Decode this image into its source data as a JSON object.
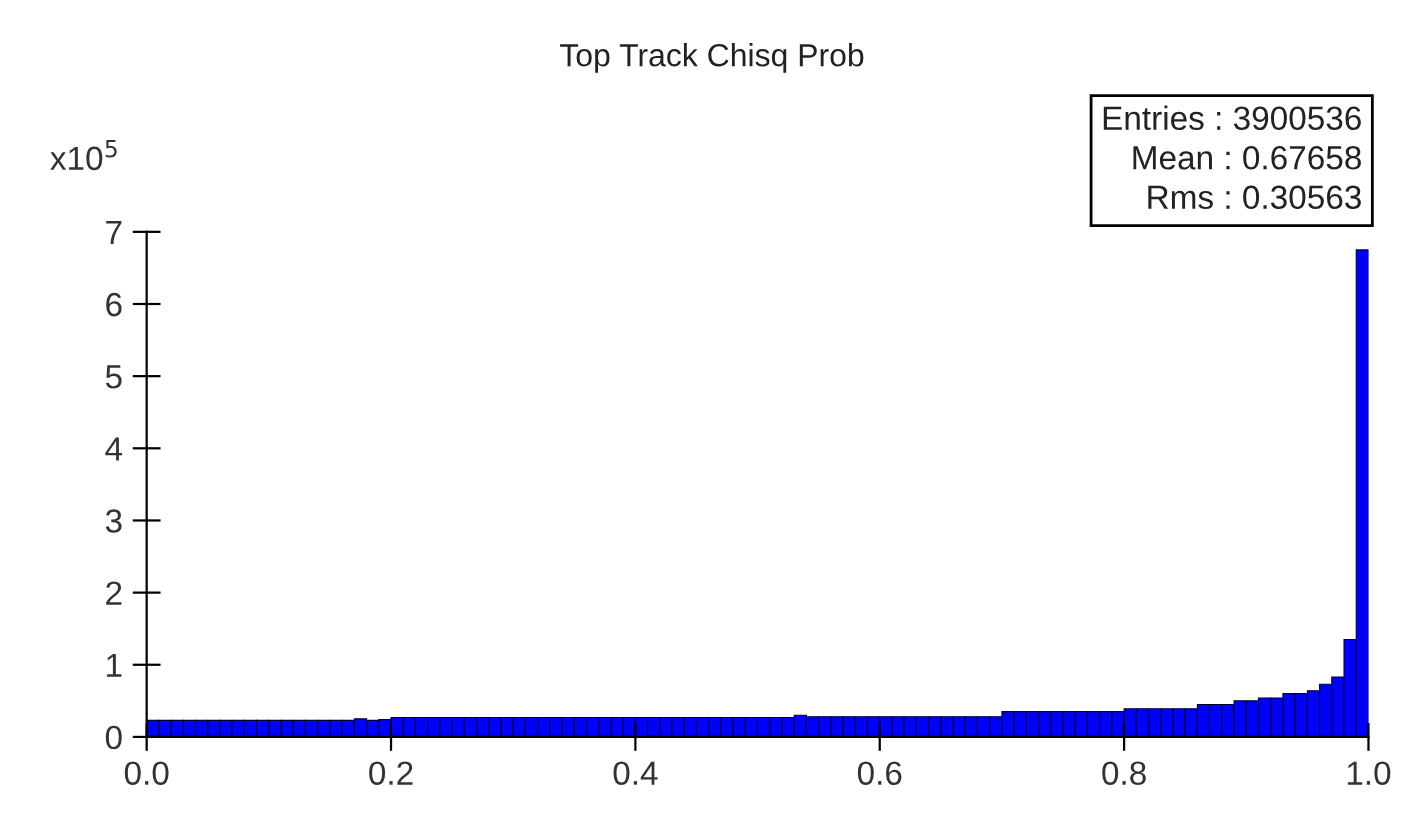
{
  "chart_data": {
    "type": "histogram",
    "title": "Top Track Chisq Prob",
    "ylabel": "x10$^{5}$",
    "bins": [
      0,
      0.01,
      0.02,
      0.03,
      0.04,
      0.05,
      0.06,
      0.07,
      0.08,
      0.09,
      0.1,
      0.11,
      0.12,
      0.13,
      0.14,
      0.15,
      0.16,
      0.17,
      0.18,
      0.19,
      0.2,
      0.21,
      0.22,
      0.23,
      0.24,
      0.25,
      0.26,
      0.27,
      0.28,
      0.29,
      0.3,
      0.31,
      0.32,
      0.33,
      0.34,
      0.35,
      0.36,
      0.37,
      0.38,
      0.39,
      0.4,
      0.41,
      0.42,
      0.43,
      0.44,
      0.45,
      0.46,
      0.47,
      0.48,
      0.49,
      0.5,
      0.51,
      0.52,
      0.53,
      0.54,
      0.55,
      0.56,
      0.57,
      0.58,
      0.59,
      0.6,
      0.61,
      0.62,
      0.63,
      0.64,
      0.65,
      0.66,
      0.67,
      0.68,
      0.69,
      0.7,
      0.71,
      0.72,
      0.73,
      0.74,
      0.75,
      0.76,
      0.77,
      0.78,
      0.79,
      0.8,
      0.81,
      0.82,
      0.83,
      0.84,
      0.85,
      0.86,
      0.87,
      0.88,
      0.89,
      0.9,
      0.91,
      0.92,
      0.93,
      0.94,
      0.95,
      0.96,
      0.97,
      0.98,
      0.99,
      1.0
    ],
    "values": [
      0.23,
      0.23,
      0.23,
      0.23,
      0.23,
      0.23,
      0.23,
      0.23,
      0.23,
      0.23,
      0.23,
      0.23,
      0.23,
      0.23,
      0.23,
      0.23,
      0.23,
      0.25,
      0.23,
      0.24,
      0.27,
      0.27,
      0.27,
      0.27,
      0.27,
      0.27,
      0.27,
      0.27,
      0.27,
      0.27,
      0.27,
      0.27,
      0.27,
      0.27,
      0.27,
      0.27,
      0.27,
      0.27,
      0.27,
      0.27,
      0.27,
      0.27,
      0.27,
      0.27,
      0.27,
      0.27,
      0.27,
      0.27,
      0.27,
      0.27,
      0.27,
      0.27,
      0.27,
      0.3,
      0.28,
      0.28,
      0.28,
      0.28,
      0.28,
      0.28,
      0.28,
      0.28,
      0.28,
      0.28,
      0.28,
      0.28,
      0.28,
      0.28,
      0.28,
      0.28,
      0.35,
      0.35,
      0.35,
      0.35,
      0.35,
      0.35,
      0.35,
      0.35,
      0.35,
      0.35,
      0.39,
      0.39,
      0.39,
      0.39,
      0.39,
      0.39,
      0.45,
      0.45,
      0.45,
      0.5,
      0.5,
      0.54,
      0.54,
      0.6,
      0.6,
      0.64,
      0.73,
      0.83,
      1.35,
      6.75
    ],
    "color": "#0000ff",
    "xlim": [
      0,
      1.0
    ],
    "ylim": [
      0,
      7
    ],
    "xticks": [
      {
        "value": 0,
        "label": "0.0"
      },
      0.2,
      0.4,
      0.6,
      0.8,
      {
        "value": 1.0,
        "label": "1.0"
      }
    ],
    "yticks": [
      0,
      1,
      2,
      3,
      4,
      5,
      6,
      7
    ],
    "annotations": [
      "Entries : 3900536",
      "Mean : 0.67658",
      "Rms : 0.30563"
    ],
    "grid": false
  }
}
